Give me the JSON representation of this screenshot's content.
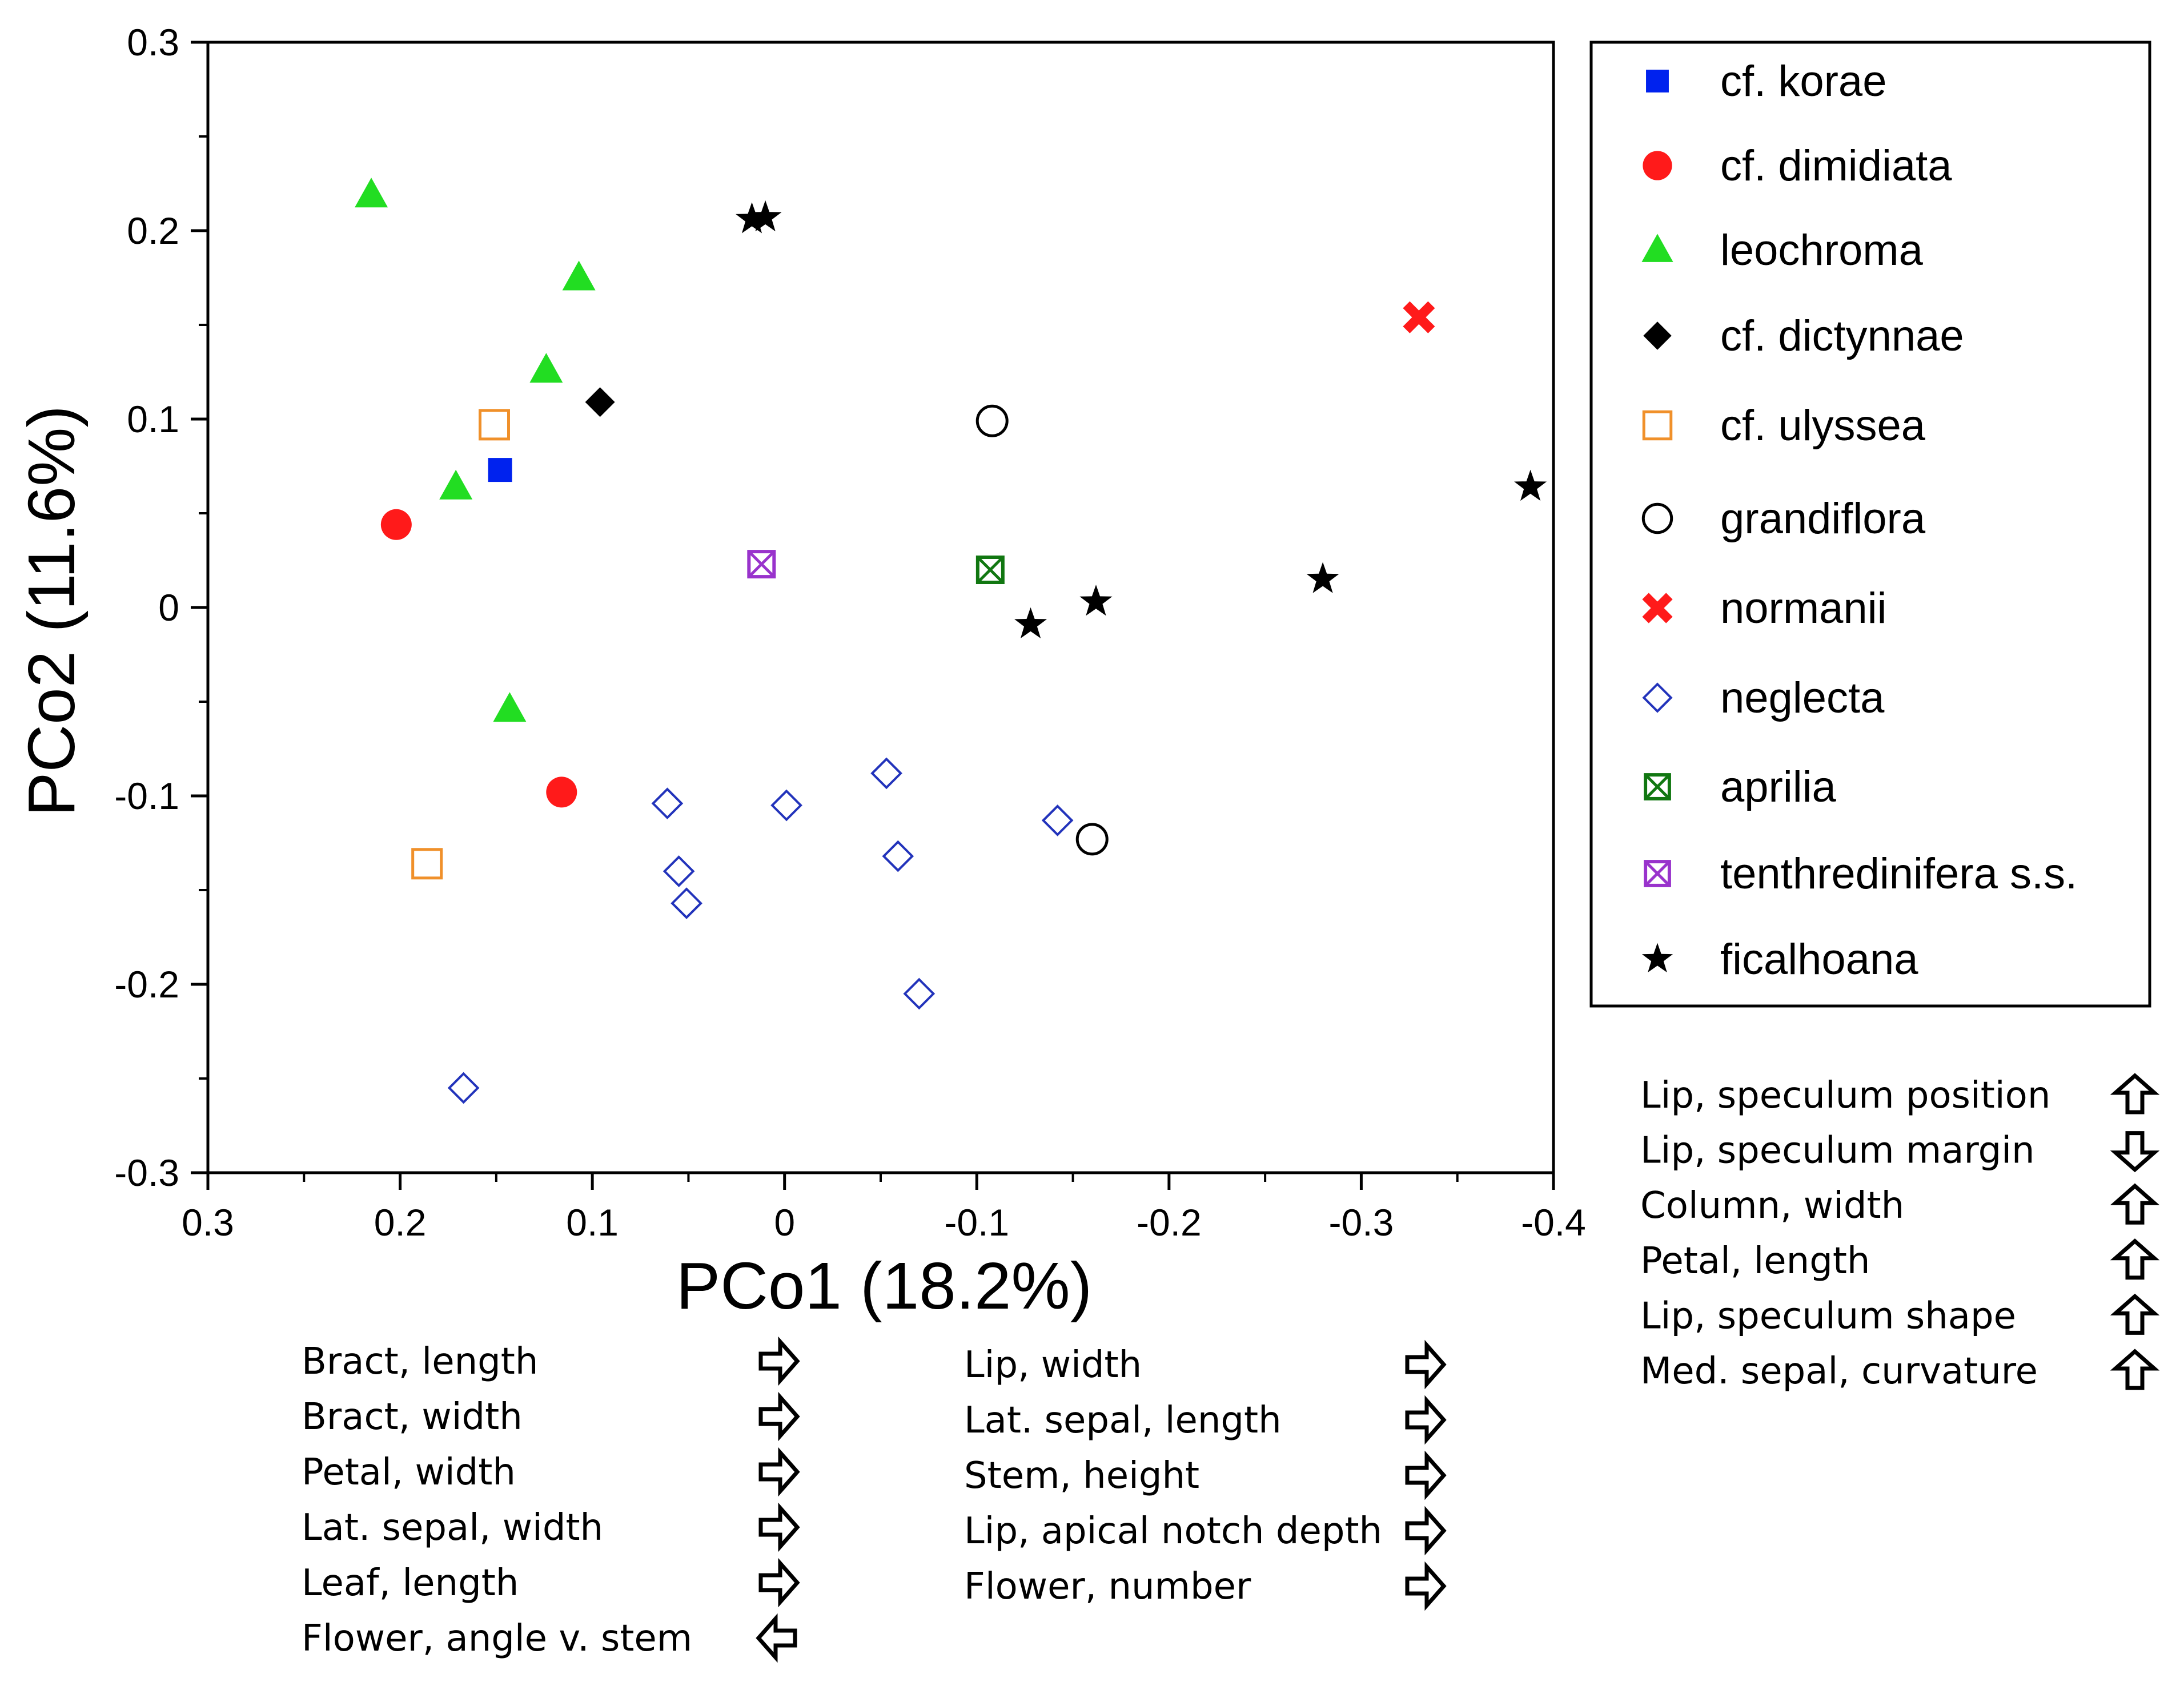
{
  "chart_data": {
    "type": "scatter",
    "title": "",
    "xlabel": "PCo1 (18.2%)",
    "ylabel": "PCo2 (11.6%)",
    "xlim": [
      0.3,
      -0.4
    ],
    "ylim": [
      -0.3,
      0.3
    ],
    "x_ticks": [
      "0.3",
      "0.2",
      "0.1",
      "0",
      "-0.1",
      "-0.2",
      "-0.3",
      "-0.4"
    ],
    "y_ticks": [
      "0.3",
      "0.2",
      "0.1",
      "0",
      "-0.1",
      "-0.2",
      "-0.3"
    ],
    "grid": false,
    "legend_position": "right",
    "series": [
      {
        "name": "cf. korae",
        "marker": "square-filled",
        "color": "#0022ee",
        "points": [
          [
            0.148,
            0.073
          ]
        ]
      },
      {
        "name": "cf. dimidiata",
        "marker": "circle-filled",
        "color": "#ff1a1a",
        "points": [
          [
            0.202,
            0.044
          ],
          [
            0.116,
            -0.098
          ]
        ]
      },
      {
        "name": "leochroma",
        "marker": "triangle-filled",
        "color": "#22dd22",
        "points": [
          [
            0.215,
            0.219
          ],
          [
            0.107,
            0.175
          ],
          [
            0.124,
            0.126
          ],
          [
            0.171,
            0.064
          ],
          [
            0.143,
            -0.054
          ]
        ]
      },
      {
        "name": "cf. dictynnae",
        "marker": "diamond-filled",
        "color": "#000000",
        "points": [
          [
            0.096,
            0.109
          ]
        ]
      },
      {
        "name": "cf. ulyssea",
        "marker": "square-open",
        "color": "#f0902a",
        "points": [
          [
            0.151,
            0.097
          ],
          [
            0.186,
            -0.136
          ]
        ]
      },
      {
        "name": "grandiflora",
        "marker": "circle-open",
        "color": "#000000",
        "points": [
          [
            -0.108,
            0.099
          ],
          [
            -0.16,
            -0.123
          ]
        ]
      },
      {
        "name": "normanii",
        "marker": "x-filled",
        "color": "#ff1a1a",
        "points": [
          [
            -0.33,
            0.154
          ]
        ]
      },
      {
        "name": "neglecta",
        "marker": "diamond-open",
        "color": "#2233bb",
        "points": [
          [
            0.061,
            -0.104
          ],
          [
            0.055,
            -0.14
          ],
          [
            0.051,
            -0.157
          ],
          [
            -0.001,
            -0.105
          ],
          [
            -0.053,
            -0.088
          ],
          [
            -0.059,
            -0.132
          ],
          [
            -0.07,
            -0.205
          ],
          [
            -0.142,
            -0.113
          ],
          [
            0.167,
            -0.255
          ]
        ]
      },
      {
        "name": "aprilia",
        "marker": "boxed-x-green",
        "color": "#117711",
        "points": [
          [
            -0.107,
            0.02
          ]
        ]
      },
      {
        "name": "tenthredinifera s.s.",
        "marker": "boxed-x-purple",
        "color": "#9933cc",
        "points": [
          [
            0.012,
            0.023
          ]
        ]
      },
      {
        "name": "ficalhoana",
        "marker": "star-filled",
        "color": "#000000",
        "points": [
          [
            0.017,
            0.206
          ],
          [
            0.01,
            0.207
          ],
          [
            -0.128,
            -0.009
          ],
          [
            -0.162,
            0.003
          ],
          [
            -0.28,
            0.015
          ],
          [
            -0.388,
            0.064
          ]
        ]
      }
    ],
    "variable_groups": [
      {
        "name": "vertical",
        "items": [
          {
            "label": "Lip, speculum position",
            "arrow": "up"
          },
          {
            "label": "Lip, speculum margin",
            "arrow": "down"
          },
          {
            "label": "Column, width",
            "arrow": "up"
          },
          {
            "label": "Petal, length",
            "arrow": "up"
          },
          {
            "label": "Lip, speculum shape",
            "arrow": "up"
          },
          {
            "label": "Med. sepal, curvature",
            "arrow": "up"
          }
        ]
      },
      {
        "name": "horizontal-left",
        "items": [
          {
            "label": "Bract, length",
            "arrow": "right"
          },
          {
            "label": "Bract, width",
            "arrow": "right"
          },
          {
            "label": "Petal, width",
            "arrow": "right"
          },
          {
            "label": "Lat. sepal, width",
            "arrow": "right"
          },
          {
            "label": "Leaf, length",
            "arrow": "right"
          },
          {
            "label": "Flower, angle v. stem",
            "arrow": "left"
          }
        ]
      },
      {
        "name": "horizontal-right",
        "items": [
          {
            "label": "Lip, width",
            "arrow": "right"
          },
          {
            "label": "Lat. sepal, length",
            "arrow": "right"
          },
          {
            "label": "Stem, height",
            "arrow": "right"
          },
          {
            "label": "Lip, apical notch depth",
            "arrow": "right"
          },
          {
            "label": "Flower, number",
            "arrow": "right"
          }
        ]
      }
    ]
  }
}
